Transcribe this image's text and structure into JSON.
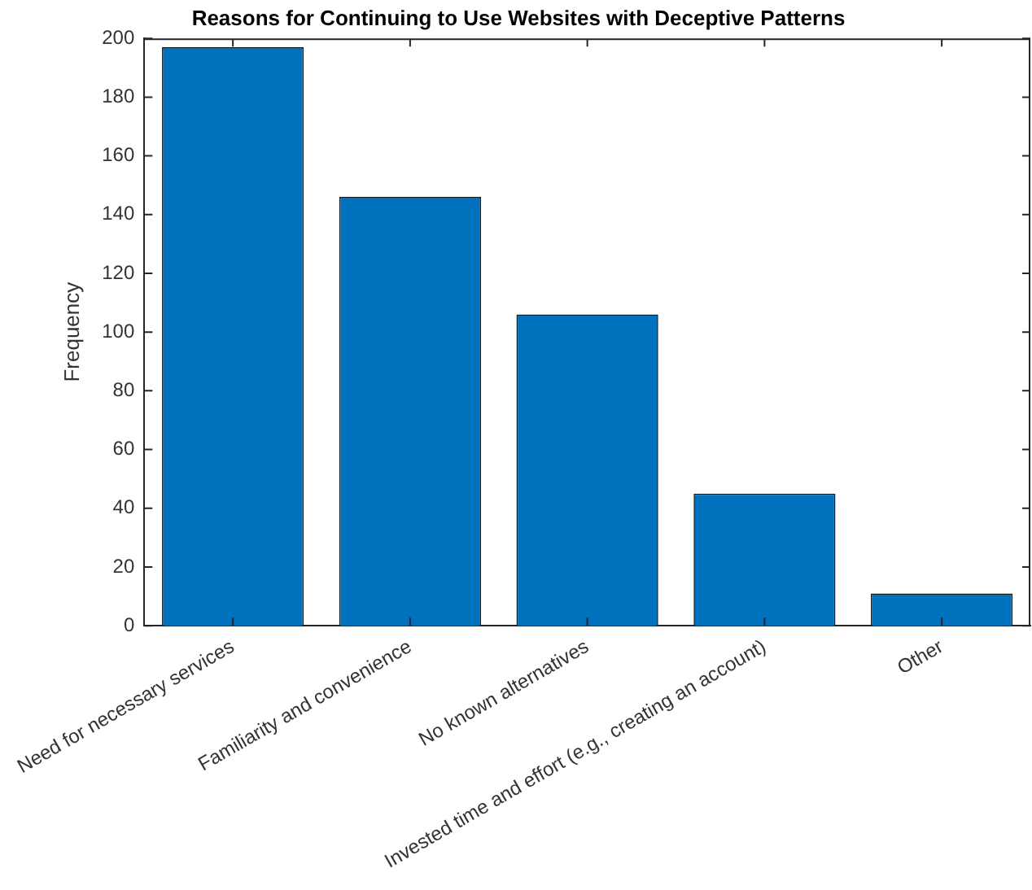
{
  "chart_data": {
    "type": "bar",
    "title": "Reasons for Continuing to Use Websites with Deceptive Patterns",
    "ylabel": "Frequency",
    "categories": [
      "Need for necessary services",
      "Familiarity and convenience",
      "No known alternatives",
      "Invested time and effort (e.g., creating an account)",
      "Other"
    ],
    "values": [
      197,
      146,
      106,
      45,
      11
    ],
    "color": "#0072bd",
    "ylim": [
      0,
      200
    ],
    "yticks": [
      0,
      20,
      40,
      60,
      80,
      100,
      120,
      140,
      160,
      180,
      200
    ],
    "grid": false,
    "legend": false
  }
}
